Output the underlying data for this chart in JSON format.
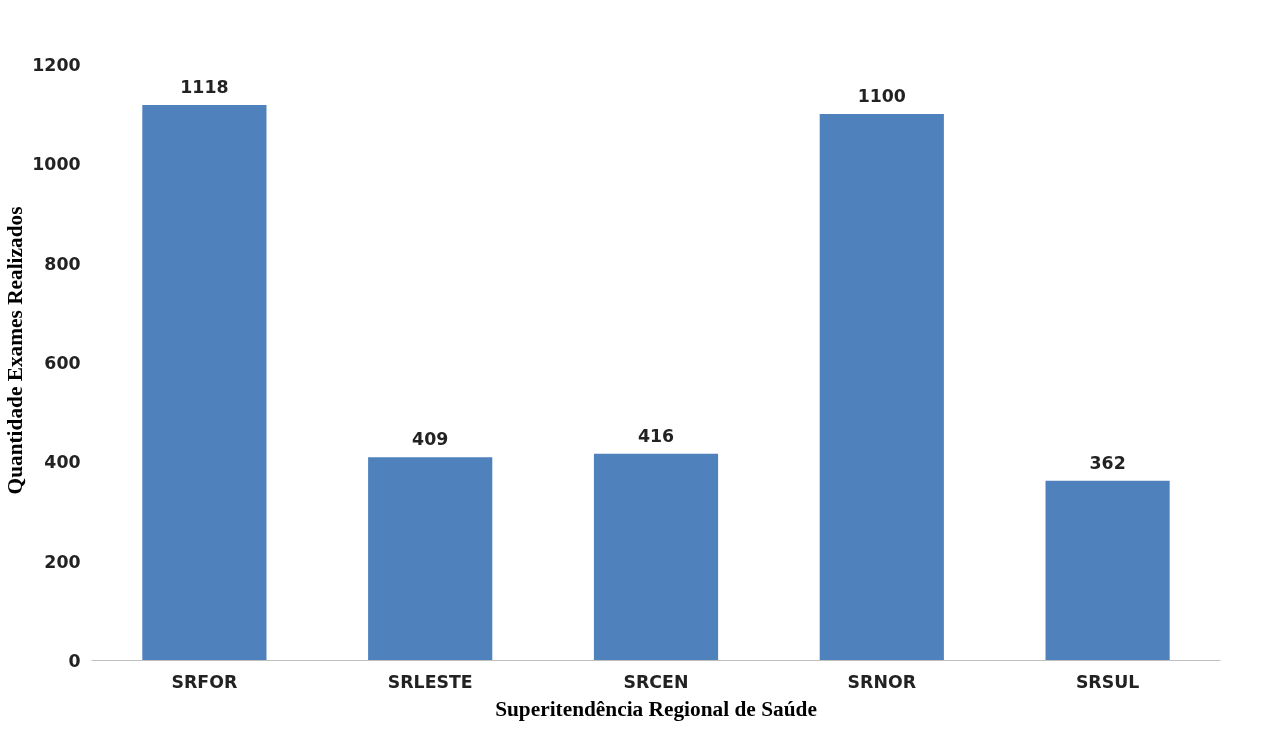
{
  "chart_data": {
    "type": "bar",
    "categories": [
      "SRFOR",
      "SRLESTE",
      "SRCEN",
      "SRNOR",
      "SRSUL"
    ],
    "values": [
      1118,
      409,
      416,
      1100,
      362
    ],
    "color": "#4f81bd",
    "xlabel": "Superitendência Regional de Saúde",
    "ylabel": "Quantidade Exames Realizados",
    "ylim": [
      0,
      1200
    ],
    "yticks": [
      0,
      200,
      400,
      600,
      800,
      1000,
      1200
    ],
    "data_labels": true,
    "grid": false
  }
}
